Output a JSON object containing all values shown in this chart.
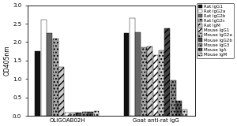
{
  "groups": [
    "OLIGOAB02H",
    "Goat anti-rat IgG"
  ],
  "series": [
    {
      "label": "Rat IgG1",
      "values": [
        1.75,
        2.25
      ],
      "color": "#111111",
      "hatch": ""
    },
    {
      "label": "Rat IgG2a",
      "values": [
        2.6,
        2.65
      ],
      "color": "#ffffff",
      "hatch": ""
    },
    {
      "label": "Rat IgG2b",
      "values": [
        2.25,
        2.27
      ],
      "color": "#666666",
      "hatch": ""
    },
    {
      "label": "Rat IgG2c",
      "values": [
        2.1,
        1.85
      ],
      "color": "#aaaaaa",
      "hatch": "...."
    },
    {
      "label": "Rat IgM",
      "values": [
        1.33,
        1.88
      ],
      "color": "#cccccc",
      "hatch": "////"
    },
    {
      "label": "Mouse IgG1",
      "values": [
        0.08,
        1.65
      ],
      "color": "#ffffff",
      "hatch": "////"
    },
    {
      "label": "Mouse IgG2a",
      "values": [
        0.09,
        1.77
      ],
      "color": "#cccccc",
      "hatch": "...."
    },
    {
      "label": "Mouse IgG2b",
      "values": [
        0.09,
        2.37
      ],
      "color": "#444444",
      "hatch": "////"
    },
    {
      "label": "Mouse IgG3",
      "values": [
        0.1,
        0.96
      ],
      "color": "#888888",
      "hatch": "...."
    },
    {
      "label": "Mouse IgA",
      "values": [
        0.11,
        0.4
      ],
      "color": "#555555",
      "hatch": "...."
    },
    {
      "label": "Mouse IgM",
      "values": [
        0.12,
        0.17
      ],
      "color": "#dddddd",
      "hatch": "...."
    }
  ],
  "ylabel": "OD405nm",
  "ylim": [
    0.0,
    3.0
  ],
  "yticks": [
    0.0,
    0.5,
    1.0,
    1.5,
    2.0,
    2.5,
    3.0
  ],
  "background_color": "#ffffff",
  "legend_labels": [
    "Rat IgG1",
    "Rat IgG2a",
    "Rat IgG2b",
    "Rat IgG2c",
    "Rat IgM",
    "Mouse IgG1",
    "Mouse IgG2a",
    "Mouse IgG2b",
    "Mouse IgG3",
    "Mouse IgA",
    "Mouse IgM"
  ],
  "legend_colors": [
    "#111111",
    "#ffffff",
    "#666666",
    "#aaaaaa",
    "#cccccc",
    "#ffffff",
    "#cccccc",
    "#444444",
    "#888888",
    "#555555",
    "#dddddd"
  ],
  "legend_hatches": [
    "",
    "",
    "",
    "....",
    "////",
    "////",
    "....",
    "////",
    "....",
    "....",
    "...."
  ]
}
